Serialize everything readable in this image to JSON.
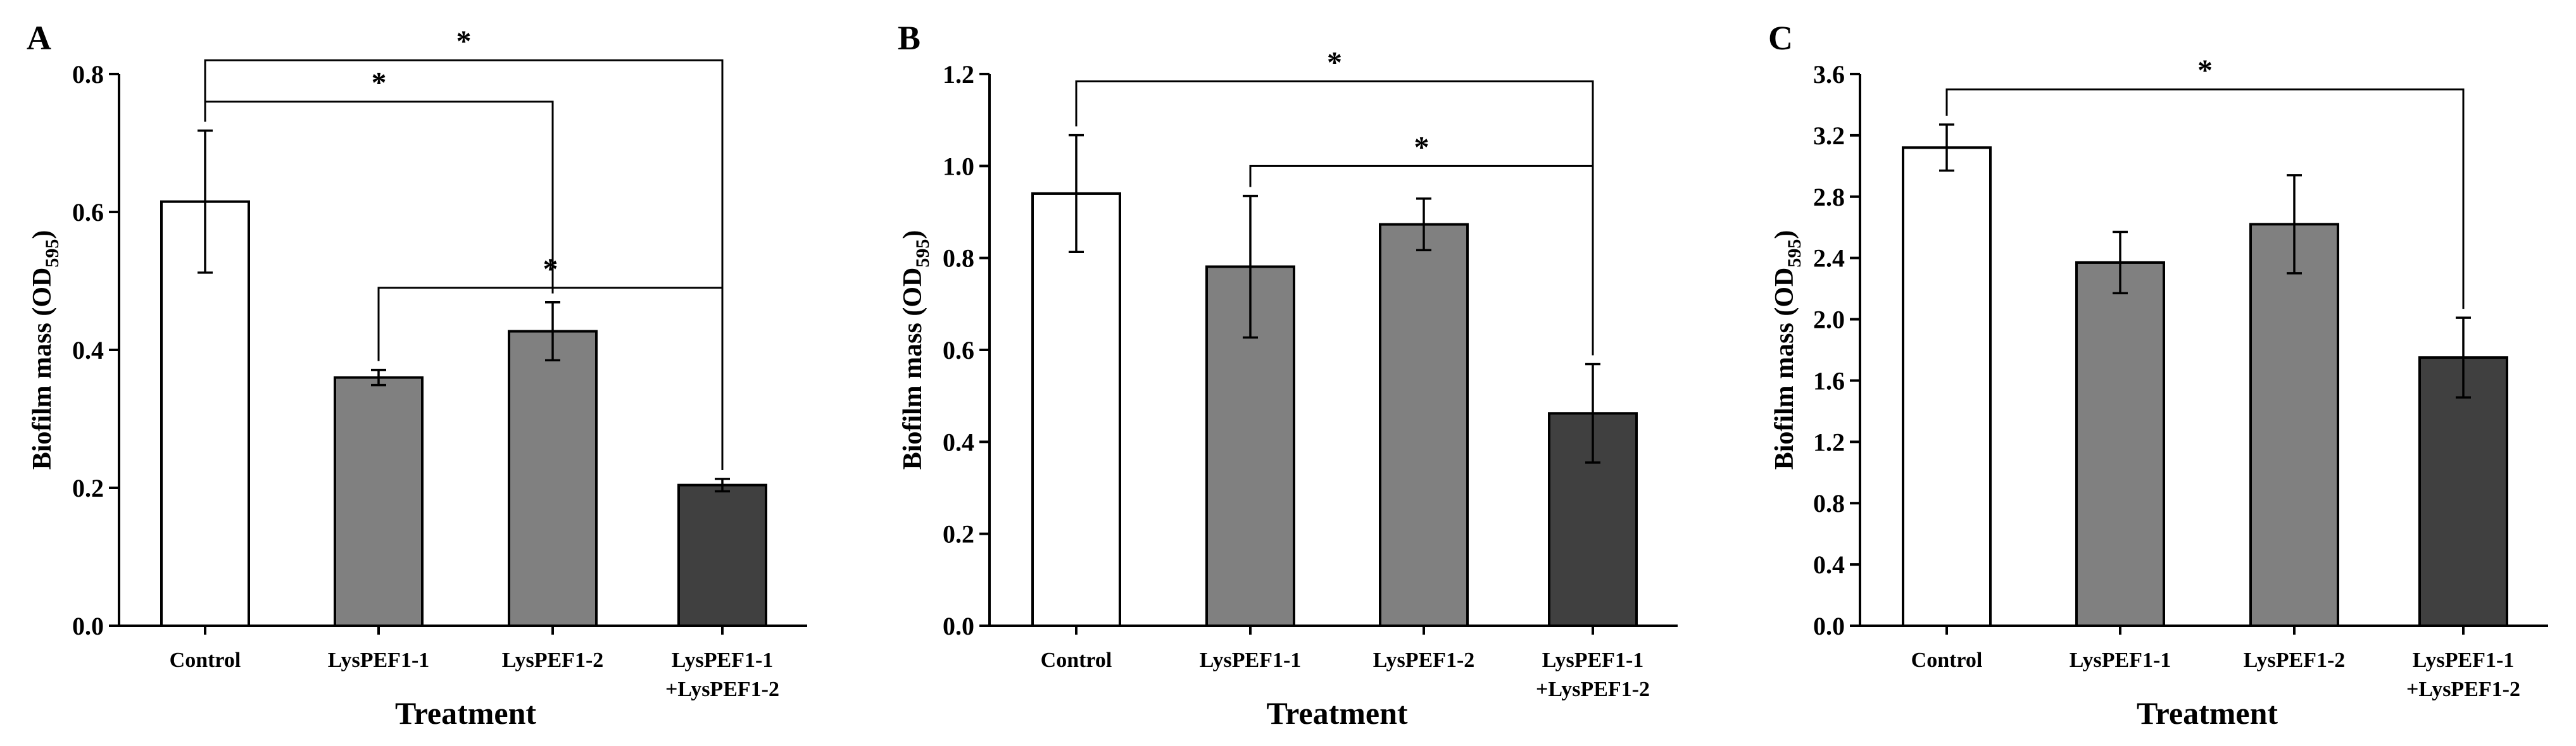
{
  "chart_data": [
    {
      "panel": "A",
      "type": "bar",
      "xlabel": "Treatment",
      "ylabel": "Biofilm mass (OD",
      "ylabel_sub": "595",
      "ylabel_end": ")",
      "ylim": [
        0,
        0.8
      ],
      "yticks": [
        0.0,
        0.2,
        0.4,
        0.6,
        0.8
      ],
      "ytick_labels": [
        "0.0",
        "0.2",
        "0.4",
        "0.6",
        "0.8"
      ],
      "categories": [
        {
          "line1": "Control",
          "line2": ""
        },
        {
          "line1": "LysPEF1-1",
          "line2": ""
        },
        {
          "line1": "LysPEF1-2",
          "line2": ""
        },
        {
          "line1": "LysPEF1-1",
          "line2": "+LysPEF1-2"
        }
      ],
      "values": [
        0.615,
        0.36,
        0.427,
        0.204
      ],
      "errors": [
        0.103,
        0.011,
        0.042,
        0.009
      ],
      "colors": [
        "#ffffff",
        "#808080",
        "#808080",
        "#404040"
      ],
      "significance": [
        {
          "from": 0,
          "to": 3,
          "label": "*",
          "level": 0.82
        },
        {
          "from": 0,
          "to": 2,
          "label": "*",
          "level": 0.76
        },
        {
          "from": 1,
          "to": 3,
          "label": "*",
          "level": 0.49
        }
      ]
    },
    {
      "panel": "B",
      "type": "bar",
      "xlabel": "Treatment",
      "ylabel": "Biofilm mass (OD",
      "ylabel_sub": "595",
      "ylabel_end": ")",
      "ylim": [
        0,
        1.2
      ],
      "yticks": [
        0.0,
        0.2,
        0.4,
        0.6,
        0.8,
        1.0,
        1.2
      ],
      "ytick_labels": [
        "0.0",
        "0.2",
        "0.4",
        "0.6",
        "0.8",
        "1.0",
        "1.2"
      ],
      "categories": [
        {
          "line1": "Control",
          "line2": ""
        },
        {
          "line1": "LysPEF1-1",
          "line2": ""
        },
        {
          "line1": "LysPEF1-2",
          "line2": ""
        },
        {
          "line1": "LysPEF1-1",
          "line2": "+LysPEF1-2"
        }
      ],
      "values": [
        0.94,
        0.781,
        0.873,
        0.462
      ],
      "errors": [
        0.127,
        0.154,
        0.056,
        0.107
      ],
      "colors": [
        "#ffffff",
        "#808080",
        "#808080",
        "#404040"
      ],
      "significance": [
        {
          "from": 0,
          "to": 3,
          "label": "*",
          "level": 1.184
        },
        {
          "from": 1,
          "to": 3,
          "label": "*",
          "level": 1.0
        }
      ]
    },
    {
      "panel": "C",
      "type": "bar",
      "xlabel": "Treatment",
      "ylabel": "Biofilm mass (OD",
      "ylabel_sub": "595",
      "ylabel_end": ")",
      "ylim": [
        0,
        3.6
      ],
      "yticks": [
        0.0,
        0.4,
        0.8,
        1.2,
        1.6,
        2.0,
        2.4,
        2.8,
        3.2,
        3.6
      ],
      "ytick_labels": [
        "0.0",
        "0.4",
        "0.8",
        "1.2",
        "1.6",
        "2.0",
        "2.4",
        "2.8",
        "3.2",
        "3.6"
      ],
      "categories": [
        {
          "line1": "Control",
          "line2": ""
        },
        {
          "line1": "LysPEF1-1",
          "line2": ""
        },
        {
          "line1": "LysPEF1-2",
          "line2": ""
        },
        {
          "line1": "LysPEF1-1",
          "line2": "+LysPEF1-2"
        }
      ],
      "values": [
        3.12,
        2.37,
        2.62,
        1.75
      ],
      "errors": [
        0.15,
        0.2,
        0.32,
        0.26
      ],
      "colors": [
        "#ffffff",
        "#808080",
        "#808080",
        "#404040"
      ],
      "significance": [
        {
          "from": 0,
          "to": 3,
          "label": "*",
          "level": 3.5
        }
      ]
    }
  ]
}
